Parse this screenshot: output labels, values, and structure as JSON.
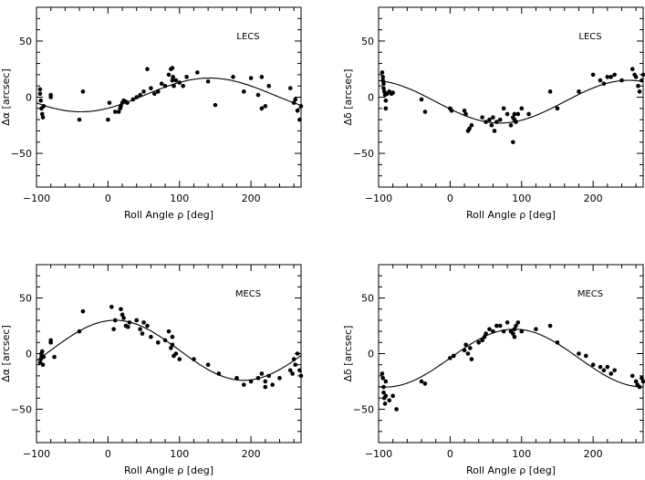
{
  "chart_data": [
    {
      "type": "scatter",
      "panel_label": "LECS",
      "xlabel": "Roll Angle ρ [deg]",
      "ylabel": "Δα [arcsec]",
      "xlim": [
        -100,
        270
      ],
      "ylim": [
        -80,
        80
      ],
      "xticks": [
        -100,
        0,
        100,
        200
      ],
      "yticks": [
        -50,
        0,
        50
      ],
      "fit": {
        "offset": 2,
        "amplitude": 15,
        "phase_deg": 142
      },
      "x": [
        -95,
        -95,
        -94,
        -93,
        -92,
        -91,
        -90,
        -80,
        -80,
        -40,
        -35,
        0,
        2,
        10,
        15,
        17,
        18,
        20,
        22,
        25,
        27,
        35,
        40,
        45,
        50,
        55,
        60,
        65,
        70,
        75,
        80,
        85,
        88,
        90,
        90,
        91,
        92,
        95,
        100,
        105,
        110,
        125,
        140,
        150,
        175,
        190,
        200,
        210,
        215,
        215,
        220,
        225,
        255,
        260,
        262,
        265,
        268,
        270
      ],
      "y": [
        7,
        3,
        -3,
        -10,
        -15,
        -18,
        -8,
        2,
        0,
        -20,
        5,
        -20,
        -5,
        -13,
        -13,
        -10,
        -8,
        -5,
        -3,
        -4,
        -5,
        -2,
        0,
        2,
        5,
        25,
        8,
        3,
        5,
        12,
        10,
        20,
        25,
        26,
        15,
        18,
        10,
        15,
        13,
        10,
        18,
        22,
        14,
        -7,
        18,
        5,
        17,
        2,
        18,
        -10,
        -8,
        10,
        8,
        -5,
        -2,
        -12,
        -20,
        -8
      ]
    },
    {
      "type": "scatter",
      "panel_label": "LECS",
      "xlabel": "Roll Angle ρ [deg]",
      "ylabel": "Δδ [arcsec]",
      "xlim": [
        -100,
        270
      ],
      "ylim": [
        -80,
        80
      ],
      "xticks": [
        -100,
        0,
        100,
        200
      ],
      "yticks": [
        -50,
        0,
        50
      ],
      "fit": {
        "offset": -4,
        "amplitude": 19,
        "phase_deg": 250
      },
      "x": [
        -95,
        -94,
        -94,
        -93,
        -93,
        -92,
        -91,
        -90,
        -90,
        -88,
        -85,
        -82,
        -80,
        -40,
        -35,
        0,
        2,
        20,
        22,
        25,
        27,
        30,
        45,
        50,
        55,
        58,
        60,
        62,
        65,
        70,
        75,
        80,
        85,
        88,
        88,
        90,
        90,
        92,
        95,
        100,
        110,
        140,
        150,
        180,
        200,
        210,
        215,
        220,
        225,
        230,
        240,
        255,
        258,
        260,
        263,
        265,
        268,
        270
      ],
      "y": [
        22,
        18,
        15,
        12,
        8,
        5,
        2,
        -3,
        -10,
        3,
        5,
        3,
        4,
        -2,
        -13,
        -10,
        -12,
        -12,
        -15,
        -30,
        -28,
        -25,
        -18,
        -22,
        -20,
        -25,
        -18,
        -30,
        -22,
        -20,
        -10,
        -15,
        -25,
        -40,
        -18,
        -20,
        -15,
        -22,
        -15,
        -10,
        -15,
        5,
        -10,
        5,
        20,
        15,
        12,
        18,
        18,
        20,
        15,
        25,
        20,
        18,
        10,
        5,
        15,
        20
      ]
    },
    {
      "type": "scatter",
      "panel_label": "MECS",
      "xlabel": "Roll Angle ρ [deg]",
      "ylabel": "Δα [arcsec]",
      "xlim": [
        -100,
        270
      ],
      "ylim": [
        -80,
        80
      ],
      "xticks": [
        -100,
        0,
        100,
        200
      ],
      "yticks": [
        -50,
        0,
        50
      ],
      "fit": {
        "offset": 3,
        "amplitude": 27,
        "phase_deg": 10
      },
      "x": [
        -95,
        -94,
        -93,
        -93,
        -92,
        -91,
        -90,
        -80,
        -80,
        -75,
        -40,
        -35,
        5,
        8,
        10,
        18,
        20,
        22,
        25,
        28,
        30,
        40,
        45,
        48,
        50,
        55,
        60,
        70,
        80,
        85,
        88,
        90,
        90,
        92,
        95,
        100,
        120,
        140,
        155,
        180,
        190,
        200,
        210,
        215,
        220,
        220,
        225,
        230,
        240,
        255,
        258,
        260,
        262,
        265,
        268,
        270
      ],
      "y": [
        -8,
        -5,
        -2,
        0,
        2,
        -10,
        -3,
        10,
        12,
        -3,
        20,
        38,
        42,
        22,
        30,
        40,
        35,
        32,
        25,
        24,
        28,
        30,
        22,
        18,
        28,
        25,
        15,
        10,
        12,
        20,
        5,
        15,
        8,
        -2,
        0,
        -5,
        -5,
        -10,
        -18,
        -22,
        -28,
        -25,
        -22,
        -18,
        -30,
        -25,
        -20,
        -28,
        -22,
        -15,
        -18,
        -5,
        -10,
        0,
        -15,
        -20
      ]
    },
    {
      "type": "scatter",
      "panel_label": "MECS",
      "xlabel": "Roll Angle ρ [deg]",
      "ylabel": "Δδ [arcsec]",
      "xlim": [
        -100,
        270
      ],
      "ylim": [
        -80,
        80
      ],
      "xticks": [
        -100,
        0,
        100,
        200
      ],
      "yticks": [
        -50,
        0,
        50
      ],
      "fit": {
        "offset": -4,
        "amplitude": 26,
        "phase_deg": 90
      },
      "x": [
        -95,
        -94,
        -93,
        -93,
        -92,
        -91,
        -90,
        -90,
        -85,
        -80,
        -75,
        -40,
        -35,
        0,
        5,
        20,
        22,
        25,
        28,
        30,
        40,
        45,
        48,
        50,
        55,
        60,
        65,
        70,
        75,
        80,
        85,
        88,
        90,
        90,
        92,
        95,
        100,
        120,
        140,
        150,
        180,
        190,
        200,
        210,
        215,
        220,
        225,
        230,
        255,
        260,
        262,
        265,
        268,
        270
      ],
      "y": [
        -18,
        -22,
        -30,
        -35,
        -40,
        -45,
        -25,
        -38,
        -42,
        -38,
        -50,
        -25,
        -27,
        -4,
        -2,
        3,
        8,
        0,
        5,
        -5,
        10,
        12,
        15,
        18,
        22,
        20,
        25,
        25,
        20,
        28,
        20,
        18,
        22,
        15,
        25,
        28,
        20,
        22,
        25,
        10,
        0,
        -2,
        -10,
        -12,
        -15,
        -12,
        -18,
        -15,
        -20,
        -25,
        -28,
        -30,
        -22,
        -25
      ]
    }
  ]
}
